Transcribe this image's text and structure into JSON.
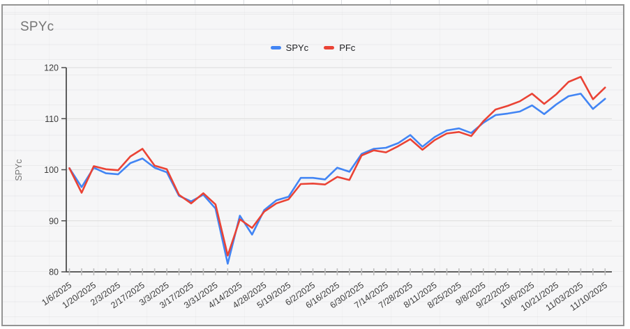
{
  "chart": {
    "title": "SPYc",
    "legend_items": [
      {
        "label": "SPYc",
        "color": "#4285f4"
      },
      {
        "label": "PFc",
        "color": "#ea4335"
      }
    ]
  },
  "colors": {
    "series_blue": "#4285f4",
    "series_red": "#ea4335",
    "title_gray": "#757575",
    "axis_line": "#4d4d4d",
    "tick_label": "#3d3d3d",
    "gridline": "#dcdcdc",
    "minor_tick": "#bdbdbd",
    "widget_border": "#949494"
  },
  "chart_data": {
    "type": "line",
    "title": "SPYc",
    "xlabel": "",
    "ylabel": "SPYc",
    "ylim": [
      80,
      120
    ],
    "y_ticks": [
      80,
      90,
      100,
      110,
      120
    ],
    "y_tick_labels": [
      "80",
      "90",
      "100",
      "110",
      "120"
    ],
    "grid": "horizontal-major",
    "legend_position": "top-center",
    "x_label_every": 2,
    "x_tick_labels": [
      "1/6/2025",
      "1/20/2025",
      "2/3/2025",
      "2/17/2025",
      "3/3/2025",
      "3/17/2025",
      "3/31/2025",
      "4/14/2025",
      "4/28/2025",
      "5/19/2025",
      "6/2/2025",
      "6/16/2025",
      "6/30/2025",
      "7/14/2025",
      "7/28/2025",
      "8/11/2025",
      "8/25/2025",
      "9/8/2025",
      "9/22/2025",
      "10/6/2025",
      "10/21/2025",
      "11/03/2025",
      "11/10/2025"
    ],
    "series": [
      {
        "name": "SPYc",
        "color": "#4285f4",
        "values": [
          100.3,
          96.6,
          100.4,
          99.3,
          99.1,
          101.3,
          102.2,
          100.4,
          99.5,
          94.9,
          93.8,
          95.1,
          92.4,
          81.6,
          91.0,
          87.3,
          92.1,
          94.0,
          94.7,
          98.4,
          98.4,
          98.1,
          100.4,
          99.6,
          103.1,
          104.1,
          104.3,
          105.2,
          106.8,
          104.5,
          106.4,
          107.7,
          108.1,
          107.2,
          109.2,
          110.7,
          111.0,
          111.4,
          112.6,
          110.9,
          112.8,
          114.4,
          114.9,
          111.9,
          113.9
        ]
      },
      {
        "name": "PFc",
        "color": "#ea4335",
        "values": [
          100.3,
          95.5,
          100.7,
          100.1,
          99.9,
          102.6,
          104.1,
          100.8,
          100.1,
          95.1,
          93.4,
          95.4,
          93.2,
          83.2,
          90.3,
          88.6,
          91.8,
          93.4,
          94.2,
          97.2,
          97.3,
          97.1,
          98.6,
          98.0,
          102.8,
          103.8,
          103.4,
          104.6,
          106.0,
          103.9,
          105.8,
          107.1,
          107.4,
          106.6,
          109.5,
          111.8,
          112.5,
          113.4,
          114.9,
          112.9,
          114.8,
          117.2,
          118.2,
          113.8,
          116.1
        ]
      }
    ]
  }
}
